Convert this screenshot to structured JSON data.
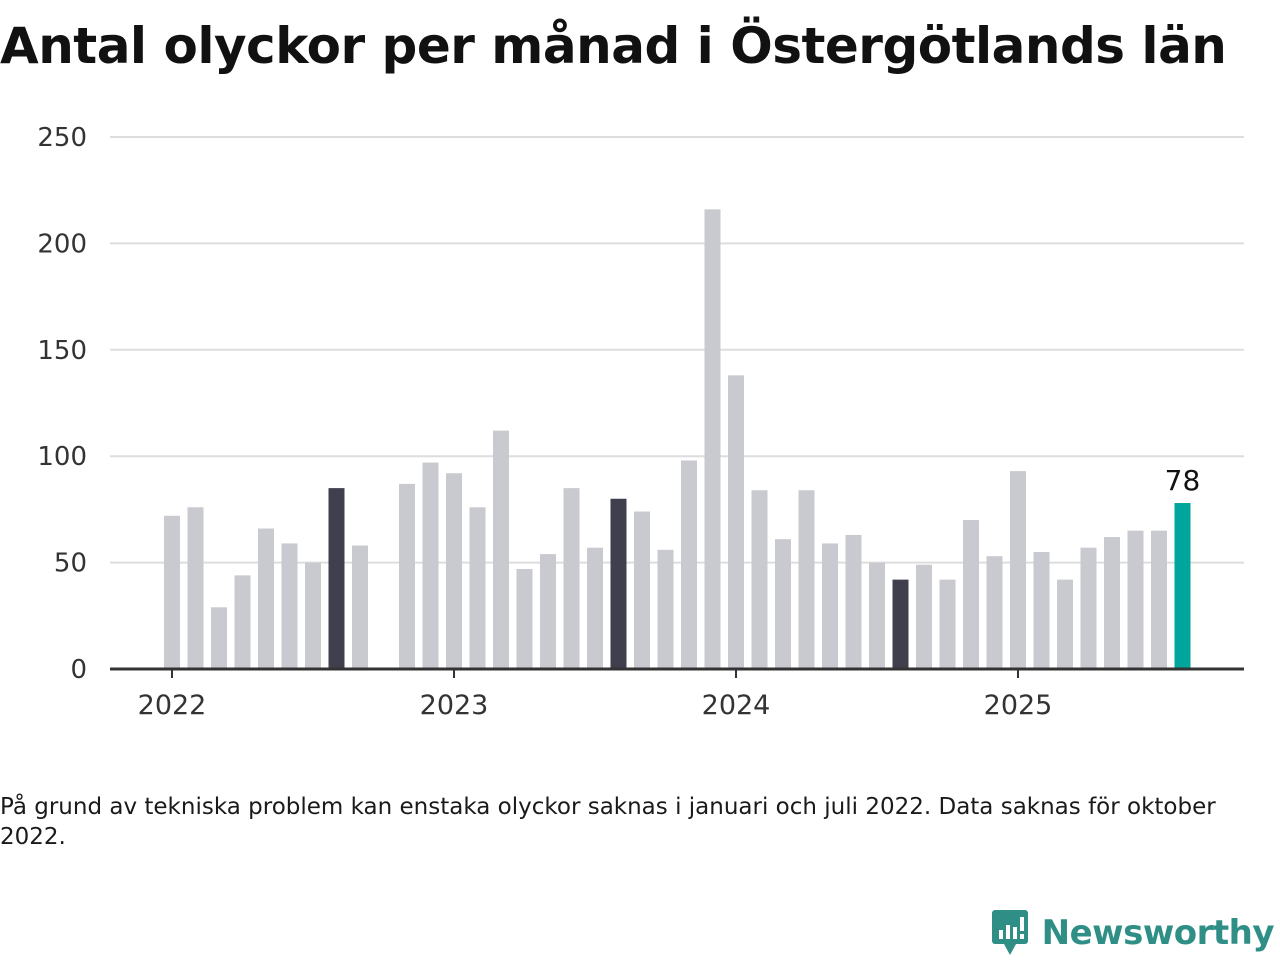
{
  "chart_data": {
    "type": "bar",
    "title": "Antal olyckor per månad i Östergötlands län",
    "xlabel": "",
    "ylabel": "",
    "ylim": [
      0,
      250
    ],
    "yticks": [
      0,
      50,
      100,
      150,
      200,
      250
    ],
    "xticks": [
      {
        "label": "2022",
        "month": "2022-01"
      },
      {
        "label": "2023",
        "month": "2023-01"
      },
      {
        "label": "2024",
        "month": "2024-01"
      },
      {
        "label": "2025",
        "month": "2025-01"
      }
    ],
    "grid": true,
    "months": [
      "2022-01",
      "2022-02",
      "2022-03",
      "2022-04",
      "2022-05",
      "2022-06",
      "2022-07",
      "2022-08",
      "2022-09",
      "2022-10",
      "2022-11",
      "2022-12",
      "2023-01",
      "2023-02",
      "2023-03",
      "2023-04",
      "2023-05",
      "2023-06",
      "2023-07",
      "2023-08",
      "2023-09",
      "2023-10",
      "2023-11",
      "2023-12",
      "2024-01",
      "2024-02",
      "2024-03",
      "2024-04",
      "2024-05",
      "2024-06",
      "2024-07",
      "2024-08",
      "2024-09",
      "2024-10",
      "2024-11",
      "2024-12",
      "2025-01",
      "2025-02",
      "2025-03",
      "2025-04",
      "2025-05",
      "2025-06",
      "2025-07",
      "2025-08"
    ],
    "values": [
      72,
      76,
      29,
      44,
      66,
      59,
      50,
      85,
      58,
      null,
      87,
      97,
      92,
      76,
      112,
      47,
      54,
      85,
      57,
      80,
      74,
      56,
      98,
      216,
      138,
      84,
      61,
      84,
      59,
      63,
      50,
      42,
      49,
      42,
      70,
      53,
      93,
      55,
      42,
      57,
      62,
      65,
      65,
      78
    ],
    "highlighted_months": [
      "2022-08",
      "2023-08",
      "2024-08"
    ],
    "current_month": "2025-08",
    "value_label": {
      "month": "2025-08",
      "text": "78"
    },
    "colors": {
      "default": "#c9c9d0",
      "highlight": "#3f3f4d",
      "current": "#00a69c",
      "grid": "#dddddd",
      "axis": "#333333"
    }
  },
  "note": "På grund av tekniska problem kan enstaka olyckor saknas i januari och juli 2022. Data saknas för oktober 2022.",
  "brand": {
    "name": "Newsworthy",
    "icon": "newsworthy-logo-icon",
    "color": "#2f8f86"
  }
}
